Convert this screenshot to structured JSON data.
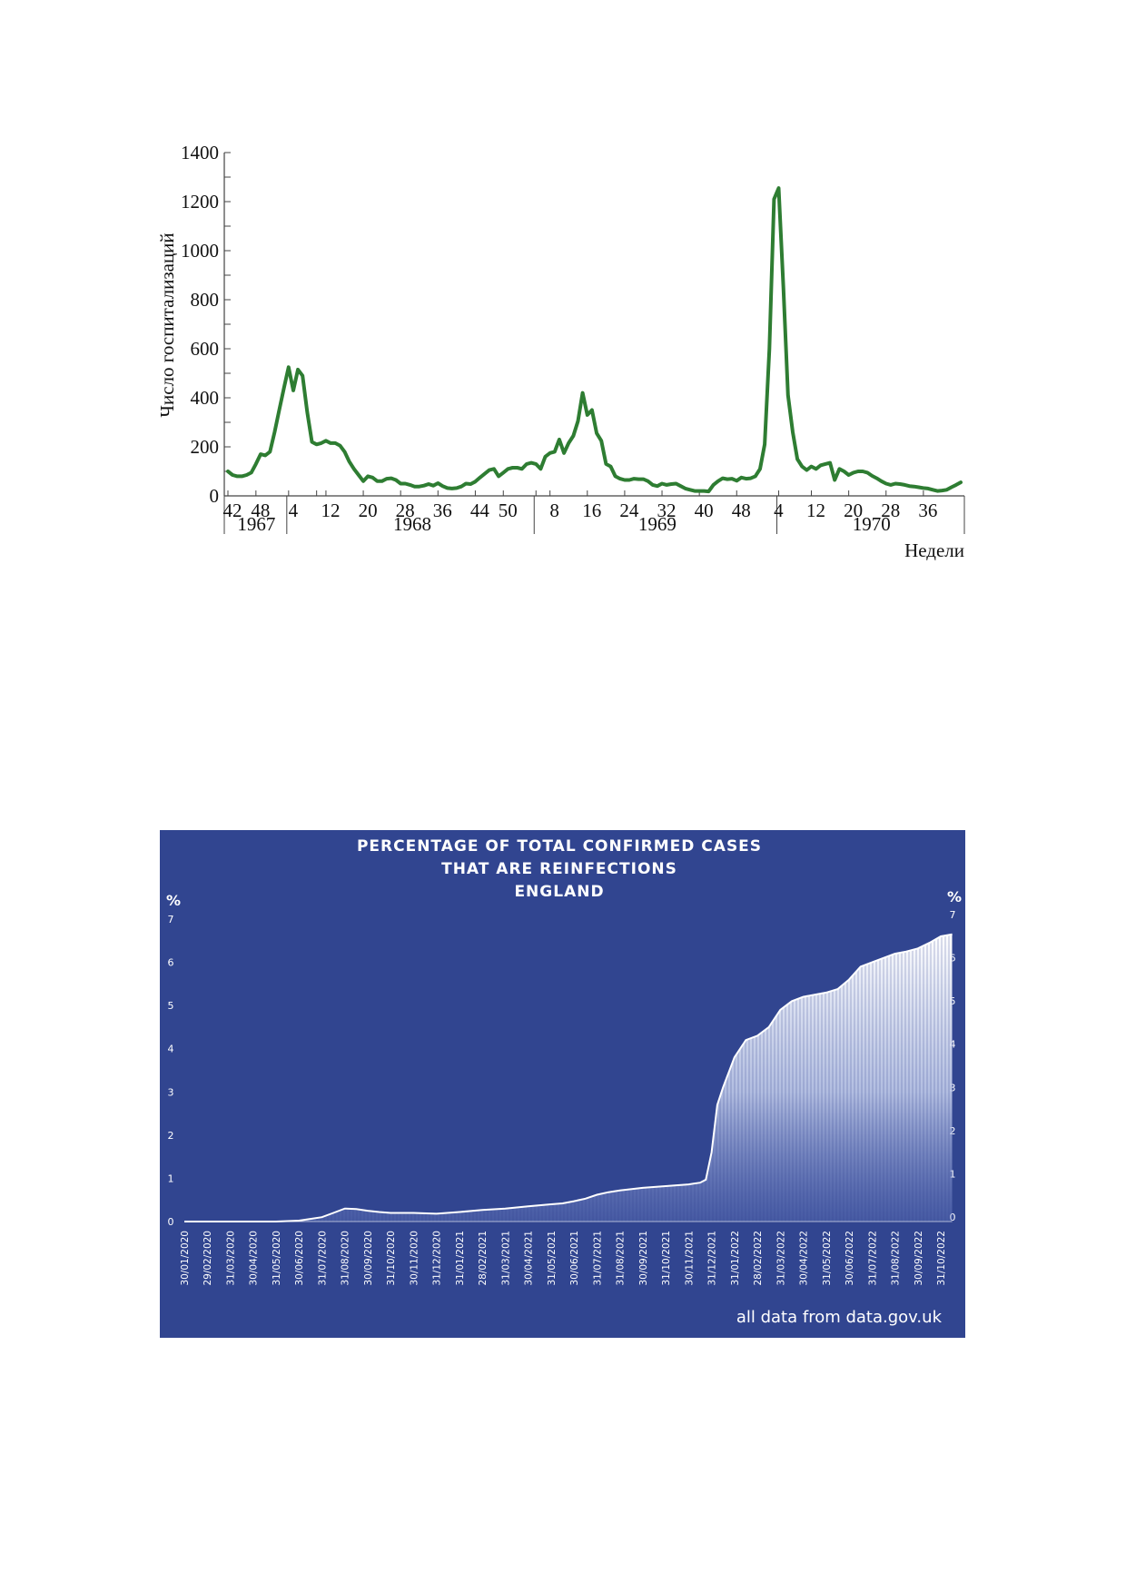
{
  "colors": {
    "line": "#2e7d32",
    "axis": "#444444",
    "panel_bg": "#314590",
    "panel_text": "#ffffff"
  },
  "chart_data": [
    {
      "type": "line",
      "ylabel": "Число госпитализаций",
      "xlabel": "Недели",
      "ylim": [
        0,
        1400
      ],
      "y_ticks": [
        "0",
        "200",
        "400",
        "600",
        "800",
        "1000",
        "1200",
        "1400"
      ],
      "x_ticks": [
        {
          "label": "42",
          "index": 0
        },
        {
          "label": "48",
          "index": 6
        },
        {
          "label": "4",
          "index": 13
        },
        {
          "label": "12",
          "index": 21
        },
        {
          "label": "20",
          "index": 29
        },
        {
          "label": "28",
          "index": 37
        },
        {
          "label": "36",
          "index": 45
        },
        {
          "label": "44",
          "index": 53
        },
        {
          "label": "50",
          "index": 59
        },
        {
          "label": "8",
          "index": 69
        },
        {
          "label": "16",
          "index": 77
        },
        {
          "label": "24",
          "index": 85
        },
        {
          "label": "32",
          "index": 93
        },
        {
          "label": "40",
          "index": 101
        },
        {
          "label": "48",
          "index": 109
        },
        {
          "label": "4",
          "index": 117
        },
        {
          "label": "12",
          "index": 125
        },
        {
          "label": "20",
          "index": 133
        },
        {
          "label": "28",
          "index": 141
        },
        {
          "label": "36",
          "index": 149
        }
      ],
      "years": [
        {
          "label": "1967",
          "start": 0,
          "end": 13
        },
        {
          "label": "1968",
          "start": 13,
          "end": 66
        },
        {
          "label": "1969",
          "start": 66,
          "end": 118
        },
        {
          "label": "1970",
          "start": 118,
          "end": 158
        }
      ],
      "year_dividers": [
        0,
        13,
        66,
        118,
        158
      ],
      "minor_ticks": [
        0,
        6,
        13,
        19,
        21,
        29,
        37,
        45,
        53,
        59,
        66,
        69,
        77,
        85,
        93,
        101,
        109,
        118,
        125,
        133,
        141,
        149
      ],
      "series": [
        {
          "values": [
            100,
            85,
            80,
            80,
            85,
            95,
            130,
            170,
            165,
            180,
            260,
            350,
            440,
            525,
            430,
            515,
            490,
            340,
            220,
            210,
            215,
            225,
            215,
            215,
            205,
            180,
            140,
            110,
            85,
            60,
            80,
            75,
            60,
            60,
            70,
            72,
            65,
            50,
            50,
            45,
            38,
            38,
            42,
            48,
            42,
            52,
            40,
            32,
            30,
            32,
            38,
            50,
            48,
            58,
            75,
            90,
            105,
            110,
            80,
            95,
            110,
            115,
            115,
            110,
            130,
            135,
            130,
            110,
            160,
            175,
            180,
            230,
            175,
            215,
            245,
            305,
            420,
            330,
            350,
            255,
            225,
            130,
            120,
            80,
            70,
            65,
            65,
            70,
            68,
            68,
            60,
            45,
            40,
            50,
            45,
            48,
            50,
            40,
            30,
            25,
            20,
            20,
            20,
            18,
            45,
            60,
            72,
            68,
            70,
            62,
            75,
            70,
            72,
            80,
            110,
            210,
            600,
            1210,
            1255,
            850,
            410,
            260,
            150,
            120,
            105,
            120,
            110,
            125,
            130,
            135,
            65,
            110,
            100,
            85,
            95,
            100,
            100,
            95,
            82,
            72,
            60,
            50,
            45,
            50,
            48,
            45,
            40,
            38,
            35,
            32,
            30,
            25,
            20,
            22,
            25,
            35,
            45,
            55
          ]
        }
      ]
    },
    {
      "type": "area",
      "title_lines": [
        "PERCENTAGE OF TOTAL CONFIRMED CASES",
        "THAT ARE REINFECTIONS",
        "ENGLAND"
      ],
      "y_unit": "%",
      "ylim": [
        0,
        7
      ],
      "y_ticks": [
        "0",
        "1",
        "2",
        "3",
        "4",
        "5",
        "6",
        "7"
      ],
      "x_labels": [
        "30/01/2020",
        "29/02/2020",
        "31/03/2020",
        "30/04/2020",
        "31/05/2020",
        "30/06/2020",
        "31/07/2020",
        "31/08/2020",
        "30/09/2020",
        "31/10/2020",
        "30/11/2020",
        "31/12/2020",
        "31/01/2021",
        "28/02/2021",
        "31/03/2021",
        "30/04/2021",
        "31/05/2021",
        "30/06/2021",
        "31/07/2021",
        "31/08/2021",
        "30/09/2021",
        "31/10/2021",
        "30/11/2021",
        "31/12/2021",
        "31/01/2022",
        "28/02/2022",
        "31/03/2022",
        "30/04/2022",
        "31/05/2022",
        "30/06/2022",
        "31/07/2022",
        "31/08/2022",
        "30/09/2022",
        "31/10/2022"
      ],
      "x_values": [
        0,
        1,
        2,
        3,
        4,
        5,
        5.5,
        6,
        6.5,
        7,
        7.5,
        8,
        8.5,
        9,
        10,
        11,
        12,
        13,
        14,
        15,
        16,
        16.5,
        17,
        17.5,
        18,
        18.5,
        19,
        20,
        21,
        22,
        22.5,
        22.75,
        23,
        23.25,
        23.5,
        24,
        24.5,
        25,
        25.5,
        26,
        26.5,
        27,
        28,
        28.5,
        29,
        29.5,
        30,
        30.5,
        31,
        31.5,
        32,
        32.5,
        33,
        33.5
      ],
      "values": [
        0,
        0,
        0,
        0,
        0,
        0.02,
        0.06,
        0.1,
        0.2,
        0.3,
        0.29,
        0.25,
        0.22,
        0.2,
        0.2,
        0.18,
        0.22,
        0.27,
        0.3,
        0.35,
        0.4,
        0.42,
        0.47,
        0.53,
        0.62,
        0.68,
        0.72,
        0.78,
        0.82,
        0.86,
        0.9,
        0.97,
        1.6,
        2.7,
        3.1,
        3.8,
        4.2,
        4.3,
        4.5,
        4.9,
        5.1,
        5.2,
        5.3,
        5.38,
        5.6,
        5.9,
        6.0,
        6.1,
        6.2,
        6.25,
        6.32,
        6.45,
        6.6,
        6.65
      ],
      "footnote": "all data from data.gov.uk"
    }
  ]
}
